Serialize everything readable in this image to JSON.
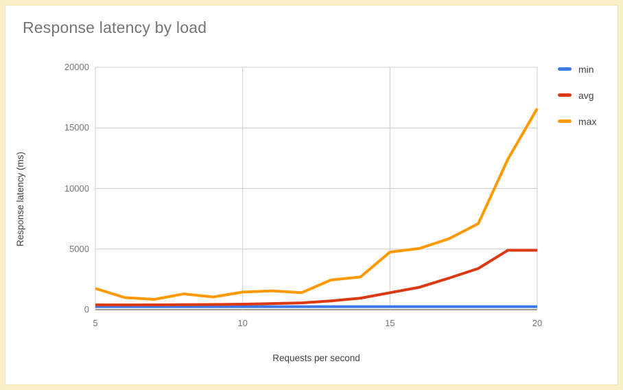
{
  "page": {
    "frame_color": "#FAF0C8",
    "frame_inner_border": "#F1E4AC",
    "background": "#FFFFFF"
  },
  "chart_data": {
    "type": "line",
    "title": "Response latency by load",
    "xlabel": "Requests per second",
    "ylabel": "Response latency (ms)",
    "x": [
      5,
      6,
      7,
      8,
      9,
      10,
      11,
      12,
      13,
      14,
      15,
      16,
      17,
      18,
      19,
      20
    ],
    "series": [
      {
        "name": "min",
        "color": "#3D79E6",
        "values": [
          250,
          250,
          250,
          250,
          250,
          250,
          250,
          250,
          250,
          250,
          250,
          250,
          250,
          250,
          250,
          250
        ]
      },
      {
        "name": "avg",
        "color": "#DC3912",
        "values": [
          400,
          390,
          395,
          410,
          425,
          450,
          500,
          560,
          720,
          950,
          1400,
          1850,
          2600,
          3400,
          4900,
          4900
        ]
      },
      {
        "name": "max",
        "color": "#FF9900",
        "values": [
          1750,
          1000,
          850,
          1300,
          1050,
          1450,
          1550,
          1400,
          2450,
          2700,
          4750,
          5050,
          5850,
          7100,
          12400,
          16600
        ]
      }
    ],
    "xlim": [
      5,
      20
    ],
    "ylim": [
      0,
      20000
    ],
    "x_ticks": [
      5,
      10,
      15,
      20
    ],
    "y_ticks": [
      0,
      5000,
      10000,
      15000,
      20000
    ],
    "grid": true,
    "legend_position": "right",
    "line_width": 4,
    "colors": {
      "gridline": "#CCCCCC",
      "baseline": "#333333",
      "title_text": "#757575",
      "tick_text": "#757575",
      "axis_title_text": "#424242",
      "legend_text": "#424242"
    }
  }
}
